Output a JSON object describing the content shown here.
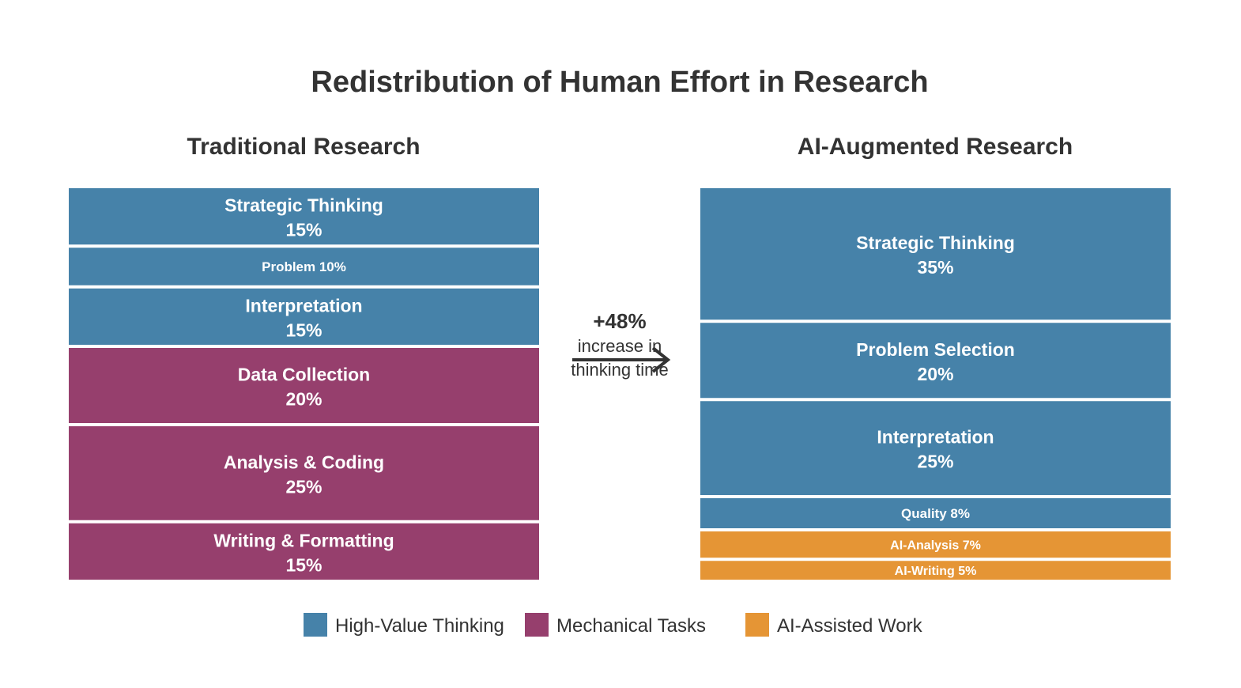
{
  "chart_data": {
    "type": "stacked-bar",
    "title": "Redistribution of Human Effort in Research",
    "colors": {
      "High-Value Thinking": "#4682a9",
      "Mechanical Tasks": "#963f6d",
      "AI-Assisted Work": "#e59535"
    },
    "panels": [
      {
        "title": "Traditional Research",
        "segments": [
          {
            "label": "Strategic Thinking",
            "value": 15,
            "value_label": "15%",
            "category": "High-Value Thinking"
          },
          {
            "label": "Problem",
            "value": 10,
            "value_label": "10%",
            "category": "High-Value Thinking"
          },
          {
            "label": "Interpretation",
            "value": 15,
            "value_label": "15%",
            "category": "High-Value Thinking"
          },
          {
            "label": "Data Collection",
            "value": 20,
            "value_label": "20%",
            "category": "Mechanical Tasks"
          },
          {
            "label": "Analysis & Coding",
            "value": 25,
            "value_label": "25%",
            "category": "Mechanical Tasks"
          },
          {
            "label": "Writing & Formatting",
            "value": 15,
            "value_label": "15%",
            "category": "Mechanical Tasks"
          }
        ]
      },
      {
        "title": "AI-Augmented Research",
        "segments": [
          {
            "label": "Strategic Thinking",
            "value": 35,
            "value_label": "35%",
            "category": "High-Value Thinking"
          },
          {
            "label": "Problem Selection",
            "value": 20,
            "value_label": "20%",
            "category": "High-Value Thinking"
          },
          {
            "label": "Interpretation",
            "value": 25,
            "value_label": "25%",
            "category": "High-Value Thinking"
          },
          {
            "label": "Quality",
            "value": 8,
            "value_label": "8%",
            "category": "High-Value Thinking"
          },
          {
            "label": "AI-Analysis",
            "value": 7,
            "value_label": "7%",
            "category": "AI-Assisted Work"
          },
          {
            "label": "AI-Writing",
            "value": 5,
            "value_label": "5%",
            "category": "AI-Assisted Work"
          }
        ]
      }
    ],
    "callout": {
      "value": "+48%",
      "line1": "increase in",
      "line2": "thinking time"
    },
    "legend": [
      "High-Value Thinking",
      "Mechanical Tasks",
      "AI-Assisted Work"
    ]
  }
}
